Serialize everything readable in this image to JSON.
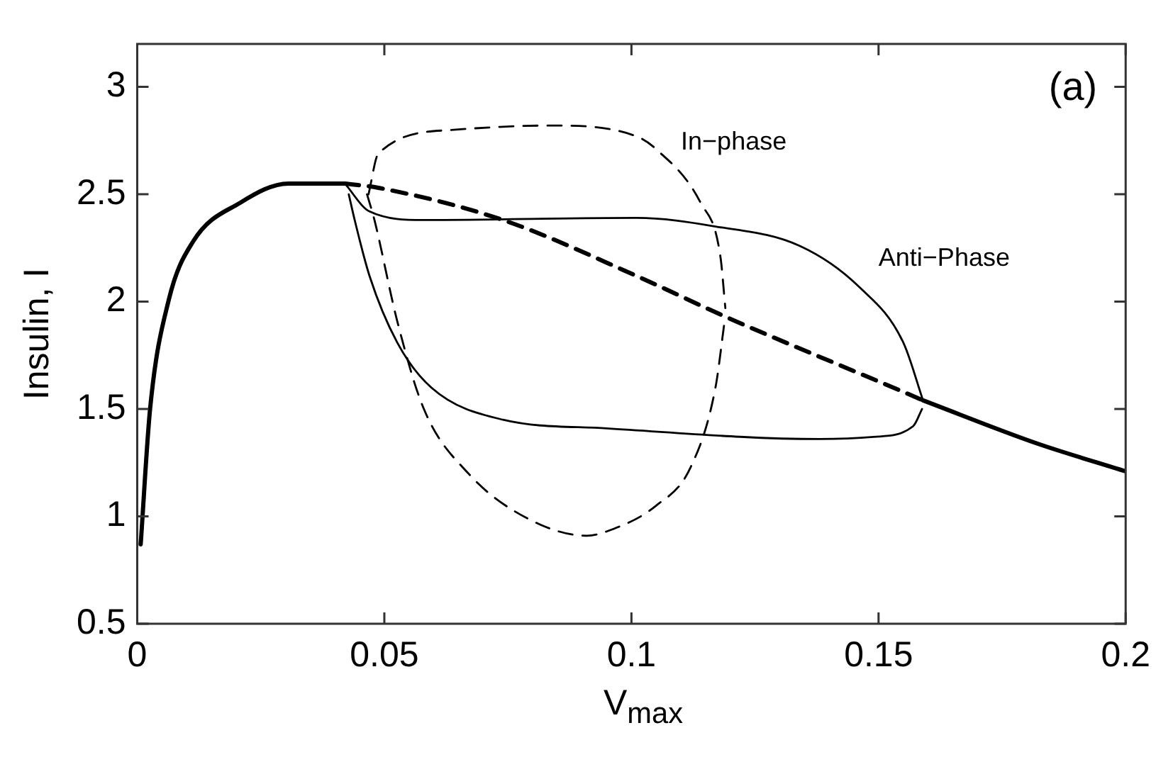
{
  "chart_data": {
    "type": "line",
    "xlabel": "V$_{max}$",
    "ylabel": "Insulin, I",
    "xlim": [
      0,
      0.2
    ],
    "ylim": [
      0.5,
      3.2
    ],
    "xticks": [
      0,
      0.05,
      0.1,
      0.15,
      0.2
    ],
    "yticks": [
      0.5,
      1,
      1.5,
      2,
      2.5,
      3
    ],
    "grid": false,
    "legend": false,
    "marker": "none",
    "annotations": [
      "(a)",
      "In−phase",
      "Anti−Phase"
    ],
    "series": [
      {
        "color": "#000000",
        "line_style": "solid",
        "x": [
          0.0007,
          0.0026,
          0.0064,
          0.0113,
          0.0208,
          0.0306,
          0.042,
          0.1,
          0.159,
          0.182,
          0.2
        ],
        "values": [
          0.87,
          1.5,
          2.01,
          2.28,
          2.46,
          2.55,
          2.55,
          null,
          1.54,
          1.34,
          1.21
        ]
      },
      {
        "color": "#000000",
        "line_style": "dashed",
        "x": [
          0.042,
          0.0488,
          0.074,
          0.101,
          0.119,
          0.156,
          0.159
        ],
        "values": [
          2.55,
          2.53,
          2.38,
          2.12,
          1.93,
          1.57,
          1.54
        ]
      },
      {
        "color": "#000000",
        "line_style": "solid",
        "x": [
          0.042,
          0.047,
          0.058,
          0.101,
          0.117,
          0.134,
          0.146,
          0.155,
          0.159
        ],
        "values": [
          2.55,
          2.42,
          2.38,
          2.39,
          2.35,
          2.26,
          2.07,
          1.81,
          1.54
        ]
      },
      {
        "color": "#000000",
        "line_style": "solid",
        "x": [
          0.0428,
          0.044,
          0.047,
          0.0526,
          0.0595,
          0.074,
          0.095,
          0.138,
          0.149,
          0.157,
          0.1588
        ],
        "values": [
          2.5,
          2.38,
          2.12,
          1.81,
          1.6,
          1.45,
          1.41,
          1.36,
          1.37,
          1.42,
          1.5
        ]
      },
      {
        "color": "#000000",
        "line_style": "dashed",
        "x": [
          0.0468,
          0.0488,
          0.064,
          0.0835,
          0.101,
          0.105,
          0.114,
          0.118,
          0.119
        ],
        "values": [
          2.5,
          2.69,
          2.8,
          2.82,
          2.77,
          2.71,
          2.46,
          2.21,
          1.97
        ]
      },
      {
        "color": "#000000",
        "line_style": "dashed",
        "x": [
          0.0465,
          0.048,
          0.0526,
          0.058,
          0.067,
          0.079,
          0.091,
          0.095,
          0.105,
          0.112,
          0.117,
          0.1188
        ],
        "values": [
          2.5,
          2.38,
          1.91,
          1.5,
          1.2,
          0.99,
          0.91,
          0.93,
          1.05,
          1.23,
          1.6,
          1.9
        ]
      }
    ]
  }
}
